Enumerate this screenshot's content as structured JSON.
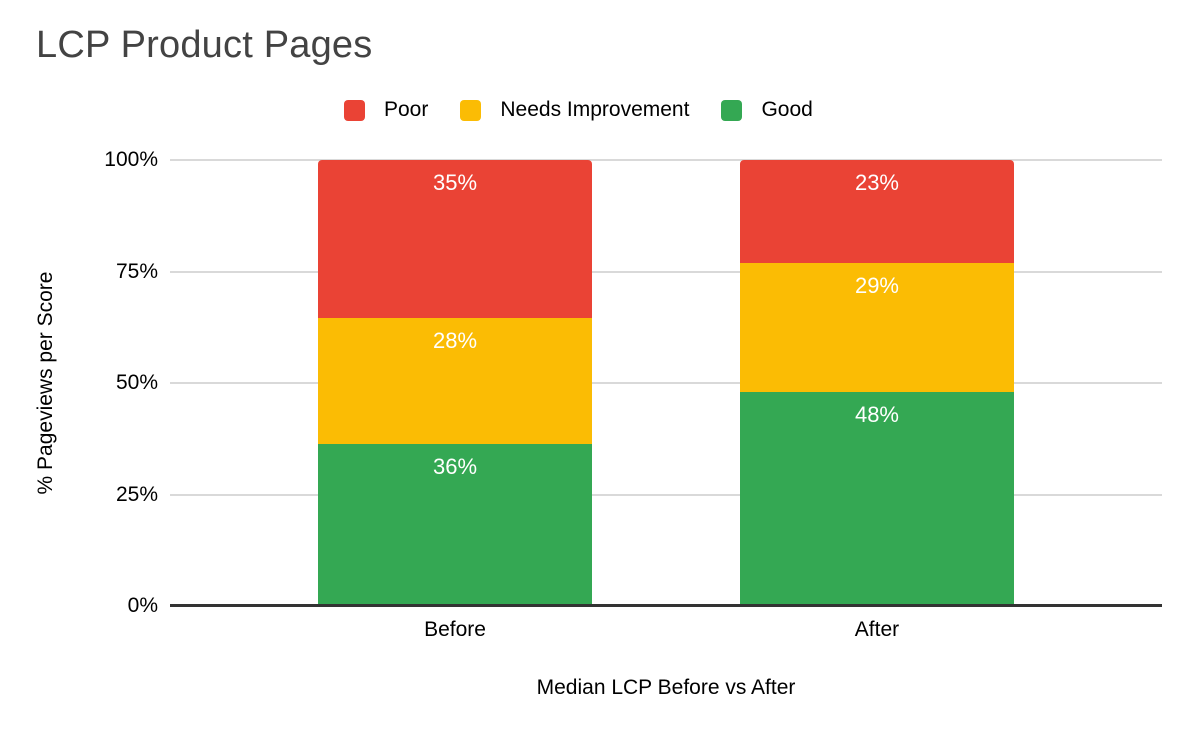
{
  "title": "LCP Product Pages",
  "legend": {
    "items": [
      {
        "label": "Poor",
        "color": "#EA4335"
      },
      {
        "label": "Needs Improvement",
        "color": "#FBBC04"
      },
      {
        "label": "Good",
        "color": "#34A853"
      }
    ]
  },
  "chart_data": {
    "type": "bar",
    "stacked": true,
    "percent_stacked": true,
    "title": "LCP Product Pages",
    "xlabel": "Median LCP Before vs After",
    "ylabel": "% Pageviews per Score",
    "categories": [
      "Before",
      "After"
    ],
    "series": [
      {
        "name": "Poor",
        "color": "#EA4335",
        "values": [
          35,
          23
        ]
      },
      {
        "name": "Needs Improvement",
        "color": "#FBBC04",
        "values": [
          28,
          29
        ]
      },
      {
        "name": "Good",
        "color": "#34A853",
        "values": [
          36,
          48
        ]
      }
    ],
    "data_labels": {
      "Before": [
        "35%",
        "28%",
        "36%"
      ],
      "After": [
        "23%",
        "29%",
        "48%"
      ]
    },
    "y_ticks": [
      "0%",
      "25%",
      "50%",
      "75%",
      "100%"
    ],
    "ylim": [
      0,
      100
    ],
    "grid": true,
    "legend_position": "top"
  },
  "colors": {
    "title_text": "#434343",
    "axis_text": "#000000",
    "bar_label_text": "#ffffff",
    "gridline": "#d9d9d9",
    "axis_line": "#333333",
    "background": "#ffffff"
  }
}
